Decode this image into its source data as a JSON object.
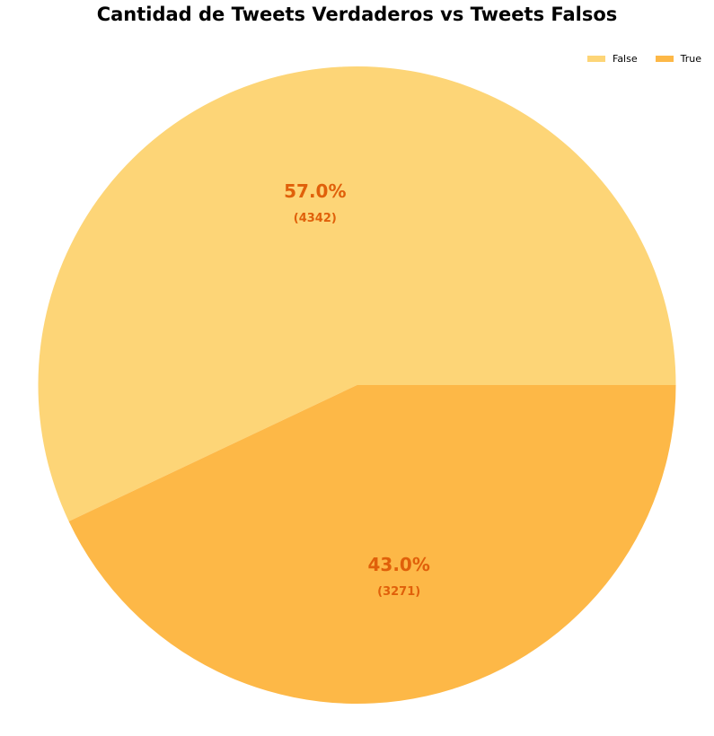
{
  "chart_data": {
    "type": "pie",
    "title": "Cantidad de Tweets Verdaderos vs Tweets Falsos",
    "labels": [
      "False",
      "True"
    ],
    "values": [
      4342,
      3271
    ],
    "percent_labels": [
      "57.0%",
      "43.0%"
    ],
    "count_labels": [
      "(4342)",
      "(3271)"
    ],
    "colors": [
      "#fdd577",
      "#fdb847"
    ],
    "label_color": "#e0600a",
    "start_angle_deg": 0,
    "direction": "counterclockwise",
    "legend_position": "top-right"
  }
}
